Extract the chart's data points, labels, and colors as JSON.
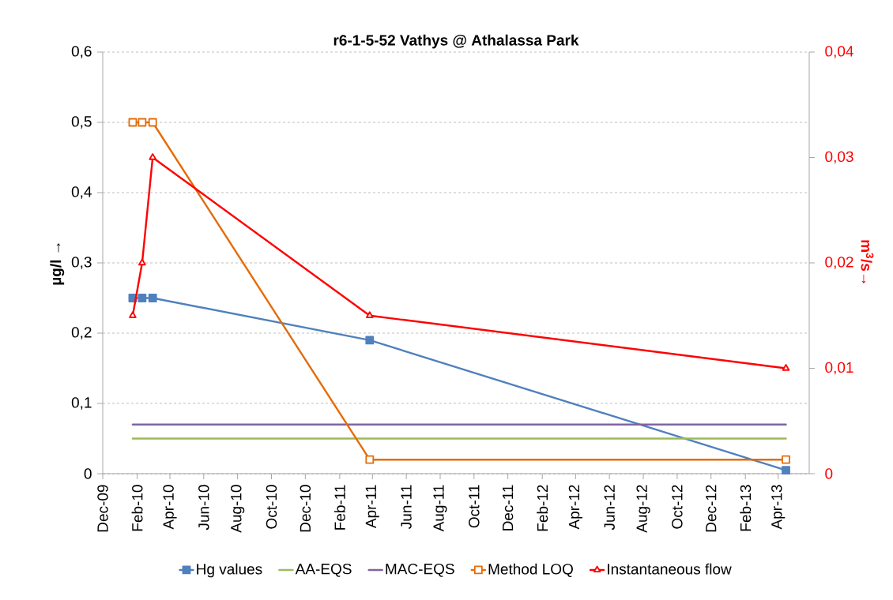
{
  "chart_data": {
    "type": "line",
    "title": "r6-1-5-52 Vathys @ Athalassa  Park",
    "ylabel": "µg/l →",
    "y2label": "m$^{3}$/s→",
    "xlim": [
      "2009-12-01",
      "2013-05-27"
    ],
    "xticks": [
      {
        "value": "2009-12-01",
        "label": "Dec-09"
      },
      {
        "value": "2010-02-01",
        "label": "Feb-10"
      },
      {
        "value": "2010-04-01",
        "label": "Apr-10"
      },
      {
        "value": "2010-06-01",
        "label": "Jun-10"
      },
      {
        "value": "2010-08-01",
        "label": "Aug-10"
      },
      {
        "value": "2010-10-01",
        "label": "Oct-10"
      },
      {
        "value": "2010-12-01",
        "label": "Dec-10"
      },
      {
        "value": "2011-02-01",
        "label": "Feb-11"
      },
      {
        "value": "2011-04-01",
        "label": "Apr-11"
      },
      {
        "value": "2011-06-01",
        "label": "Jun-11"
      },
      {
        "value": "2011-08-01",
        "label": "Aug-11"
      },
      {
        "value": "2011-10-01",
        "label": "Oct-11"
      },
      {
        "value": "2011-12-01",
        "label": "Dec-11"
      },
      {
        "value": "2012-02-01",
        "label": "Feb-12"
      },
      {
        "value": "2012-04-01",
        "label": "Apr-12"
      },
      {
        "value": "2012-06-01",
        "label": "Jun-12"
      },
      {
        "value": "2012-08-01",
        "label": "Aug-12"
      },
      {
        "value": "2012-10-01",
        "label": "Oct-12"
      },
      {
        "value": "2012-12-01",
        "label": "Dec-12"
      },
      {
        "value": "2013-02-01",
        "label": "Feb-13"
      },
      {
        "value": "2013-04-01",
        "label": "Apr-13"
      }
    ],
    "ylim": [
      0,
      0.6
    ],
    "yticks": [
      {
        "value": 0,
        "label": "0"
      },
      {
        "value": 0.1,
        "label": "0,1"
      },
      {
        "value": 0.2,
        "label": "0,2"
      },
      {
        "value": 0.3,
        "label": "0,3"
      },
      {
        "value": 0.4,
        "label": "0,4"
      },
      {
        "value": 0.5,
        "label": "0,5"
      },
      {
        "value": 0.6,
        "label": "0,6"
      }
    ],
    "y2lim": [
      0,
      0.04
    ],
    "y2ticks": [
      {
        "value": 0,
        "label": "0"
      },
      {
        "value": 0.01,
        "label": "0,01"
      },
      {
        "value": 0.02,
        "label": "0,02"
      },
      {
        "value": 0.03,
        "label": "0,03"
      },
      {
        "value": 0.04,
        "label": "0,04"
      }
    ],
    "grid": "y",
    "legend": "bottom",
    "series": [
      {
        "name": "Hg values",
        "color": "#4f81bd",
        "marker": "square",
        "x": [
          "2010-01-24",
          "2010-02-10",
          "2010-03-01",
          "2011-03-27",
          "2013-04-15"
        ],
        "values": [
          0.25,
          0.25,
          0.25,
          0.19,
          0.005
        ]
      },
      {
        "name": "AA-EQS",
        "color": "#9bbb59",
        "marker": "none",
        "x": [
          "2010-01-24",
          "2013-04-15"
        ],
        "values": [
          0.05,
          0.05
        ]
      },
      {
        "name": "MAC-EQS",
        "color": "#8064a2",
        "marker": "none",
        "x": [
          "2010-01-24",
          "2013-04-15"
        ],
        "values": [
          0.07,
          0.07
        ]
      },
      {
        "name": "Method LOQ",
        "color": "#e46c0a",
        "marker": "square",
        "x": [
          "2010-01-24",
          "2010-02-10",
          "2010-03-01",
          "2011-03-27",
          "2013-04-15"
        ],
        "values": [
          0.5,
          0.5,
          0.5,
          0.02,
          0.02
        ]
      },
      {
        "name": "Instantaneous flow",
        "color": "#ff0000",
        "marker": "triangle",
        "axis": "y2",
        "x": [
          "2010-01-24",
          "2010-02-10",
          "2010-03-01",
          "2011-03-27",
          "2013-04-15"
        ],
        "values": [
          0.015,
          0.02,
          0.03,
          0.015,
          0.01
        ]
      }
    ]
  }
}
